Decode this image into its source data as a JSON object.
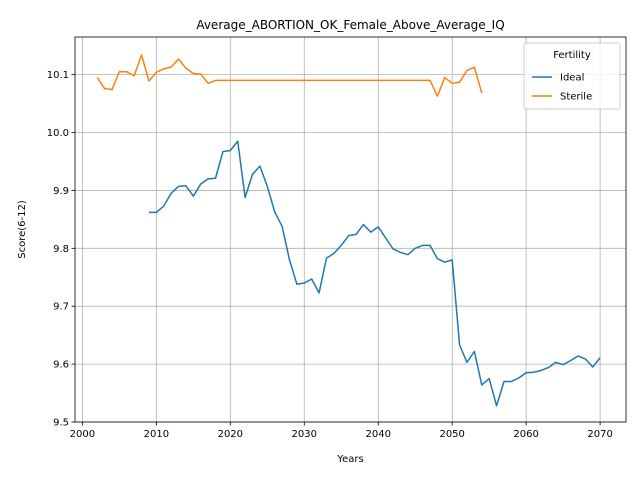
{
  "chart_data": {
    "type": "line",
    "title": "Average_ABORTION_OK_Female_Above_Average_IQ",
    "xlabel": "Years",
    "ylabel": "Score(6-12)",
    "xlim": [
      1999,
      2073.5
    ],
    "ylim": [
      9.5,
      10.165
    ],
    "xticks": [
      2000,
      2010,
      2020,
      2030,
      2040,
      2050,
      2060,
      2070
    ],
    "yticks": [
      9.5,
      9.6,
      9.7,
      9.8,
      9.9,
      10.0,
      10.1
    ],
    "ytick_labels": [
      "9.5",
      "9.6",
      "9.7",
      "9.8",
      "9.9",
      "10.0",
      "10.1"
    ],
    "grid": true,
    "legend": {
      "title": "Fertility",
      "placement": "top-right"
    },
    "series": [
      {
        "name": "Ideal",
        "color": "#1f77b4",
        "x": [
          2009,
          2010,
          2011,
          2012,
          2013,
          2014,
          2015,
          2016,
          2017,
          2018,
          2019,
          2020,
          2021,
          2022,
          2023,
          2024,
          2025,
          2026,
          2027,
          2028,
          2029,
          2030,
          2031,
          2032,
          2033,
          2034,
          2035,
          2036,
          2037,
          2038,
          2039,
          2040,
          2041,
          2042,
          2043,
          2044,
          2045,
          2046,
          2047,
          2048,
          2049,
          2050,
          2051,
          2052,
          2053,
          2054,
          2055,
          2056,
          2057,
          2058,
          2059,
          2060,
          2061,
          2062,
          2063,
          2064,
          2065,
          2066,
          2067,
          2068,
          2069,
          2070
        ],
        "y": [
          9.862,
          9.862,
          9.873,
          9.895,
          9.907,
          9.908,
          9.89,
          9.911,
          9.92,
          9.921,
          9.967,
          9.969,
          9.985,
          9.888,
          9.928,
          9.942,
          9.907,
          9.863,
          9.838,
          9.78,
          9.738,
          9.74,
          9.747,
          9.723,
          9.783,
          9.791,
          9.805,
          9.822,
          9.824,
          9.841,
          9.828,
          9.837,
          9.818,
          9.799,
          9.793,
          9.789,
          9.8,
          9.805,
          9.805,
          9.782,
          9.776,
          9.78,
          9.633,
          9.603,
          9.622,
          9.564,
          9.575,
          9.528,
          9.57,
          9.57,
          9.576,
          9.585,
          9.586,
          9.589,
          9.594,
          9.603,
          9.599,
          9.606,
          9.614,
          9.609,
          9.595,
          9.611
        ]
      },
      {
        "name": "Sterile",
        "color": "#ff7f0e",
        "x": [
          2002,
          2003,
          2004,
          2005,
          2006,
          2007,
          2008,
          2009,
          2010,
          2011,
          2012,
          2013,
          2014,
          2015,
          2016,
          2017,
          2018,
          2019,
          2020,
          2021,
          2022,
          2023,
          2024,
          2025,
          2026,
          2027,
          2028,
          2029,
          2030,
          2031,
          2032,
          2033,
          2034,
          2035,
          2036,
          2037,
          2038,
          2039,
          2040,
          2041,
          2042,
          2043,
          2044,
          2045,
          2046,
          2047,
          2048,
          2049,
          2050,
          2051,
          2052,
          2053,
          2054
        ],
        "y": [
          10.095,
          10.076,
          10.074,
          10.105,
          10.105,
          10.098,
          10.134,
          10.089,
          10.104,
          10.11,
          10.113,
          10.127,
          10.111,
          10.102,
          10.101,
          10.085,
          10.09,
          10.09,
          10.09,
          10.09,
          10.09,
          10.09,
          10.09,
          10.09,
          10.09,
          10.09,
          10.09,
          10.09,
          10.09,
          10.09,
          10.09,
          10.09,
          10.09,
          10.09,
          10.09,
          10.09,
          10.09,
          10.09,
          10.09,
          10.09,
          10.09,
          10.09,
          10.09,
          10.09,
          10.09,
          10.09,
          10.063,
          10.095,
          10.085,
          10.087,
          10.107,
          10.113,
          10.068
        ]
      }
    ]
  }
}
